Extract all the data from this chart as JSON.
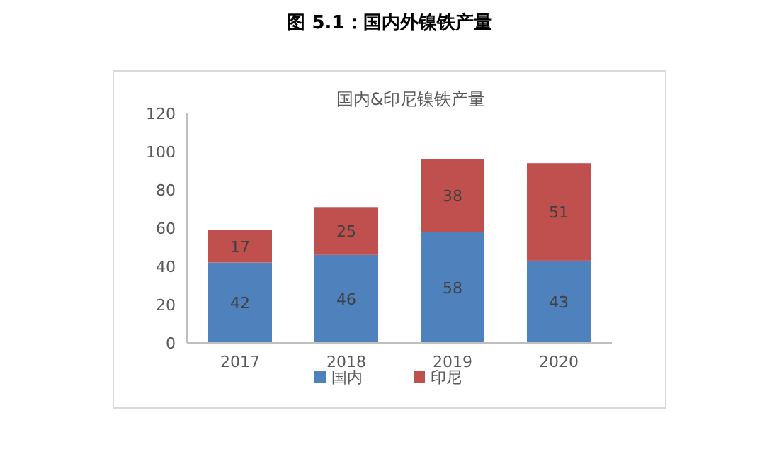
{
  "chart_data": {
    "type": "bar",
    "title": "图 5.1：国内外镍铁产量",
    "subtitle": "国内&印尼镍铁产量",
    "categories": [
      "2017",
      "2018",
      "2019",
      "2020"
    ],
    "stacked": true,
    "series": [
      {
        "name": "国内",
        "color": "#4f81bd",
        "values": [
          42,
          46,
          58,
          43
        ]
      },
      {
        "name": "印尼",
        "color": "#c0504d",
        "values": [
          17,
          25,
          38,
          51
        ]
      }
    ],
    "ylim": [
      0,
      120
    ],
    "yticks": [
      0,
      20,
      40,
      60,
      80,
      100,
      120
    ],
    "data_labels": true,
    "legend": "bottom",
    "grid": false
  }
}
